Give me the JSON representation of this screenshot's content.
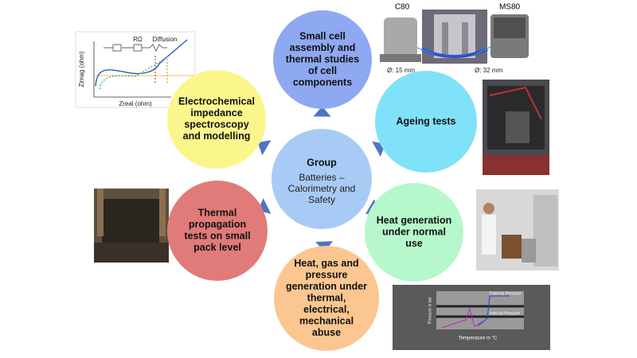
{
  "center": {
    "title": "Group",
    "lines": [
      "Batteries –",
      "Calorimetry and",
      "Safety"
    ]
  },
  "nodes": [
    {
      "lines": [
        "Small cell",
        "assembly and",
        "thermal studies",
        "of cell",
        "components"
      ]
    },
    {
      "lines": [
        "Ageing tests"
      ]
    },
    {
      "lines": [
        "Heat generation",
        "under normal",
        "use"
      ]
    },
    {
      "lines": [
        "Heat, gas and",
        "pressure",
        "generation under",
        "thermal,",
        "electrical,",
        "mechanical",
        "abuse"
      ]
    },
    {
      "lines": [
        "Thermal",
        "propagation",
        "tests on small",
        "pack level"
      ]
    },
    {
      "lines": [
        "Electrochemical",
        "impedance",
        "spectroscopy",
        "and modelling"
      ]
    }
  ],
  "images": {
    "calorimeters": {
      "left": "C80",
      "right": "MS80",
      "left_size": "Ø: 15 mm",
      "right_size": "Ø: 32 mm"
    },
    "impedance_plot": {
      "circuit_label": "RΩ",
      "diffusion": "Diffusion",
      "x_label": "Zreal (ohm)",
      "y_label": "Zimag (ohm)"
    },
    "pressure_plot": {
      "x_label": "Temperature in °C",
      "y_label": "Pressure in bar",
      "series": [
        "External Pressure",
        "Internal Pressure"
      ]
    }
  }
}
